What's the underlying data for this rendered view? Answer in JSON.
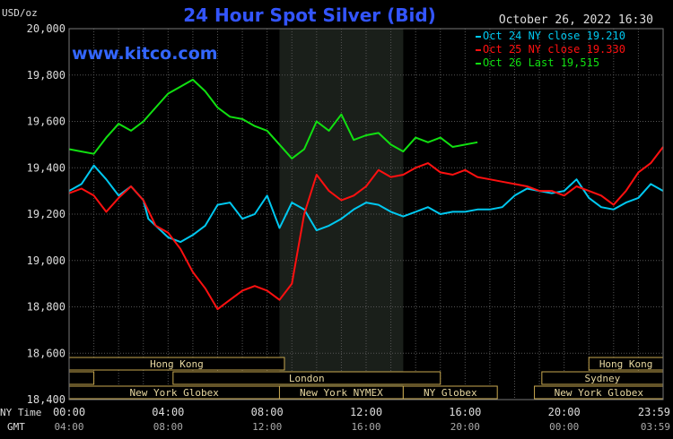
{
  "chart_data": {
    "type": "line",
    "title": "24 Hour Spot Silver (Bid)",
    "ylabel": "USD/oz",
    "timestamp": "October 26, 2022 16:30",
    "watermark": "www.kitco.com",
    "ylim": [
      18400,
      20000
    ],
    "yticks": [
      "20,000",
      "19,800",
      "19,600",
      "19,400",
      "19,200",
      "19,000",
      "18,800",
      "18,600",
      "18,400"
    ],
    "ytick_values": [
      20000,
      19800,
      19600,
      19400,
      19200,
      19000,
      18800,
      18600,
      18400
    ],
    "xlim": [
      0,
      24
    ],
    "x_axis_labels": {
      "ny": "NY Time",
      "gmt": "GMT"
    },
    "xticks_ny": [
      "00:00",
      "04:00",
      "08:00",
      "12:00",
      "16:00",
      "20:00",
      "23:59"
    ],
    "xticks_gmt": [
      "04:00",
      "08:00",
      "12:00",
      "16:00",
      "20:00",
      "00:00",
      "03:59"
    ],
    "xtick_values": [
      0,
      4,
      8,
      12,
      16,
      20,
      23.98
    ],
    "grid": true,
    "shaded_region": [
      8.5,
      13.5
    ],
    "colors": {
      "oct24": "#00c8f0",
      "oct25": "#ff1010",
      "oct26": "#11e011",
      "title": "#3355ff",
      "watermark": "#3366ff"
    },
    "series": [
      {
        "name": "Oct 24",
        "legend": "Oct 24 NY close 19.210",
        "color": "#00c8f0",
        "x": [
          0,
          0.5,
          1,
          1.5,
          2,
          2.5,
          3,
          3.2,
          3.5,
          4,
          4.5,
          5,
          5.5,
          6,
          6.5,
          7,
          7.5,
          8,
          8.5,
          9,
          9.5,
          10,
          10.5,
          11,
          11.5,
          12,
          12.5,
          13,
          13.5,
          14,
          14.5,
          15,
          15.5,
          16,
          16.5,
          17,
          17.5,
          18,
          18.5,
          19,
          19.5,
          20,
          20.5,
          21,
          21.5,
          22,
          22.5,
          23,
          23.5,
          24
        ],
        "y": [
          19300,
          19330,
          19410,
          19350,
          19280,
          19320,
          19260,
          19180,
          19150,
          19100,
          19080,
          19110,
          19150,
          19240,
          19250,
          19180,
          19200,
          19280,
          19140,
          19250,
          19220,
          19130,
          19150,
          19180,
          19220,
          19250,
          19240,
          19210,
          19190,
          19210,
          19230,
          19200,
          19210,
          19210,
          19220,
          19220,
          19230,
          19280,
          19310,
          19300,
          19290,
          19300,
          19350,
          19270,
          19230,
          19220,
          19250,
          19270,
          19330,
          19300
        ]
      },
      {
        "name": "Oct 25",
        "legend": "Oct 25 NY close 19.330",
        "color": "#ff1010",
        "x": [
          0,
          0.5,
          1,
          1.5,
          2,
          2.5,
          3,
          3.5,
          4,
          4.5,
          5,
          5.5,
          6,
          6.5,
          7,
          7.5,
          8,
          8.5,
          9,
          9.5,
          10,
          10.5,
          11,
          11.5,
          12,
          12.5,
          13,
          13.5,
          14,
          14.5,
          15,
          15.5,
          16,
          16.5,
          17,
          17.5,
          18,
          18.5,
          19,
          19.5,
          20,
          20.5,
          21,
          21.5,
          22,
          22.5,
          23,
          23.5,
          24
        ],
        "y": [
          19290,
          19310,
          19280,
          19210,
          19270,
          19320,
          19260,
          19150,
          19120,
          19050,
          18950,
          18880,
          18790,
          18830,
          18870,
          18890,
          18870,
          18830,
          18900,
          19200,
          19370,
          19300,
          19260,
          19280,
          19320,
          19390,
          19360,
          19370,
          19400,
          19420,
          19380,
          19370,
          19390,
          19360,
          19350,
          19340,
          19330,
          19320,
          19300,
          19300,
          19280,
          19320,
          19300,
          19280,
          19240,
          19300,
          19380,
          19420,
          19490
        ]
      },
      {
        "name": "Oct 26",
        "legend": "Oct 26 Last 19,515",
        "color": "#11e011",
        "x": [
          0,
          0.5,
          1,
          1.5,
          2,
          2.5,
          3,
          3.5,
          4,
          4.5,
          5,
          5.5,
          6,
          6.5,
          7,
          7.5,
          8,
          8.5,
          9,
          9.5,
          10,
          10.5,
          11,
          11.5,
          12,
          12.5,
          13,
          13.5,
          14,
          14.5,
          15,
          15.5,
          16,
          16.5
        ],
        "y": [
          19480,
          19470,
          19460,
          19530,
          19590,
          19560,
          19600,
          19660,
          19720,
          19750,
          19780,
          19730,
          19660,
          19620,
          19610,
          19580,
          19560,
          19500,
          19440,
          19480,
          19600,
          19560,
          19630,
          19520,
          19540,
          19550,
          19500,
          19470,
          19530,
          19510,
          19530,
          19490,
          19500,
          19510
        ]
      }
    ],
    "sessions": {
      "asia_row1": [
        {
          "label": "Hong Kong",
          "start": 0,
          "end": 8.7
        },
        {
          "label": "Hong Kong",
          "start": 21,
          "end": 24
        }
      ],
      "row2": [
        {
          "label": "",
          "start": 0,
          "end": 1.0
        },
        {
          "label": "London",
          "start": 4.2,
          "end": 15.0
        },
        {
          "label": "Sydney",
          "start": 19.1,
          "end": 24
        }
      ],
      "row3": [
        {
          "label": "New York Globex",
          "start": 0,
          "end": 8.5
        },
        {
          "label": "New York NYMEX",
          "start": 8.5,
          "end": 13.5
        },
        {
          "label": "NY Globex",
          "start": 13.5,
          "end": 17.3
        },
        {
          "label": "New York Globex",
          "start": 18.8,
          "end": 24
        }
      ]
    }
  }
}
